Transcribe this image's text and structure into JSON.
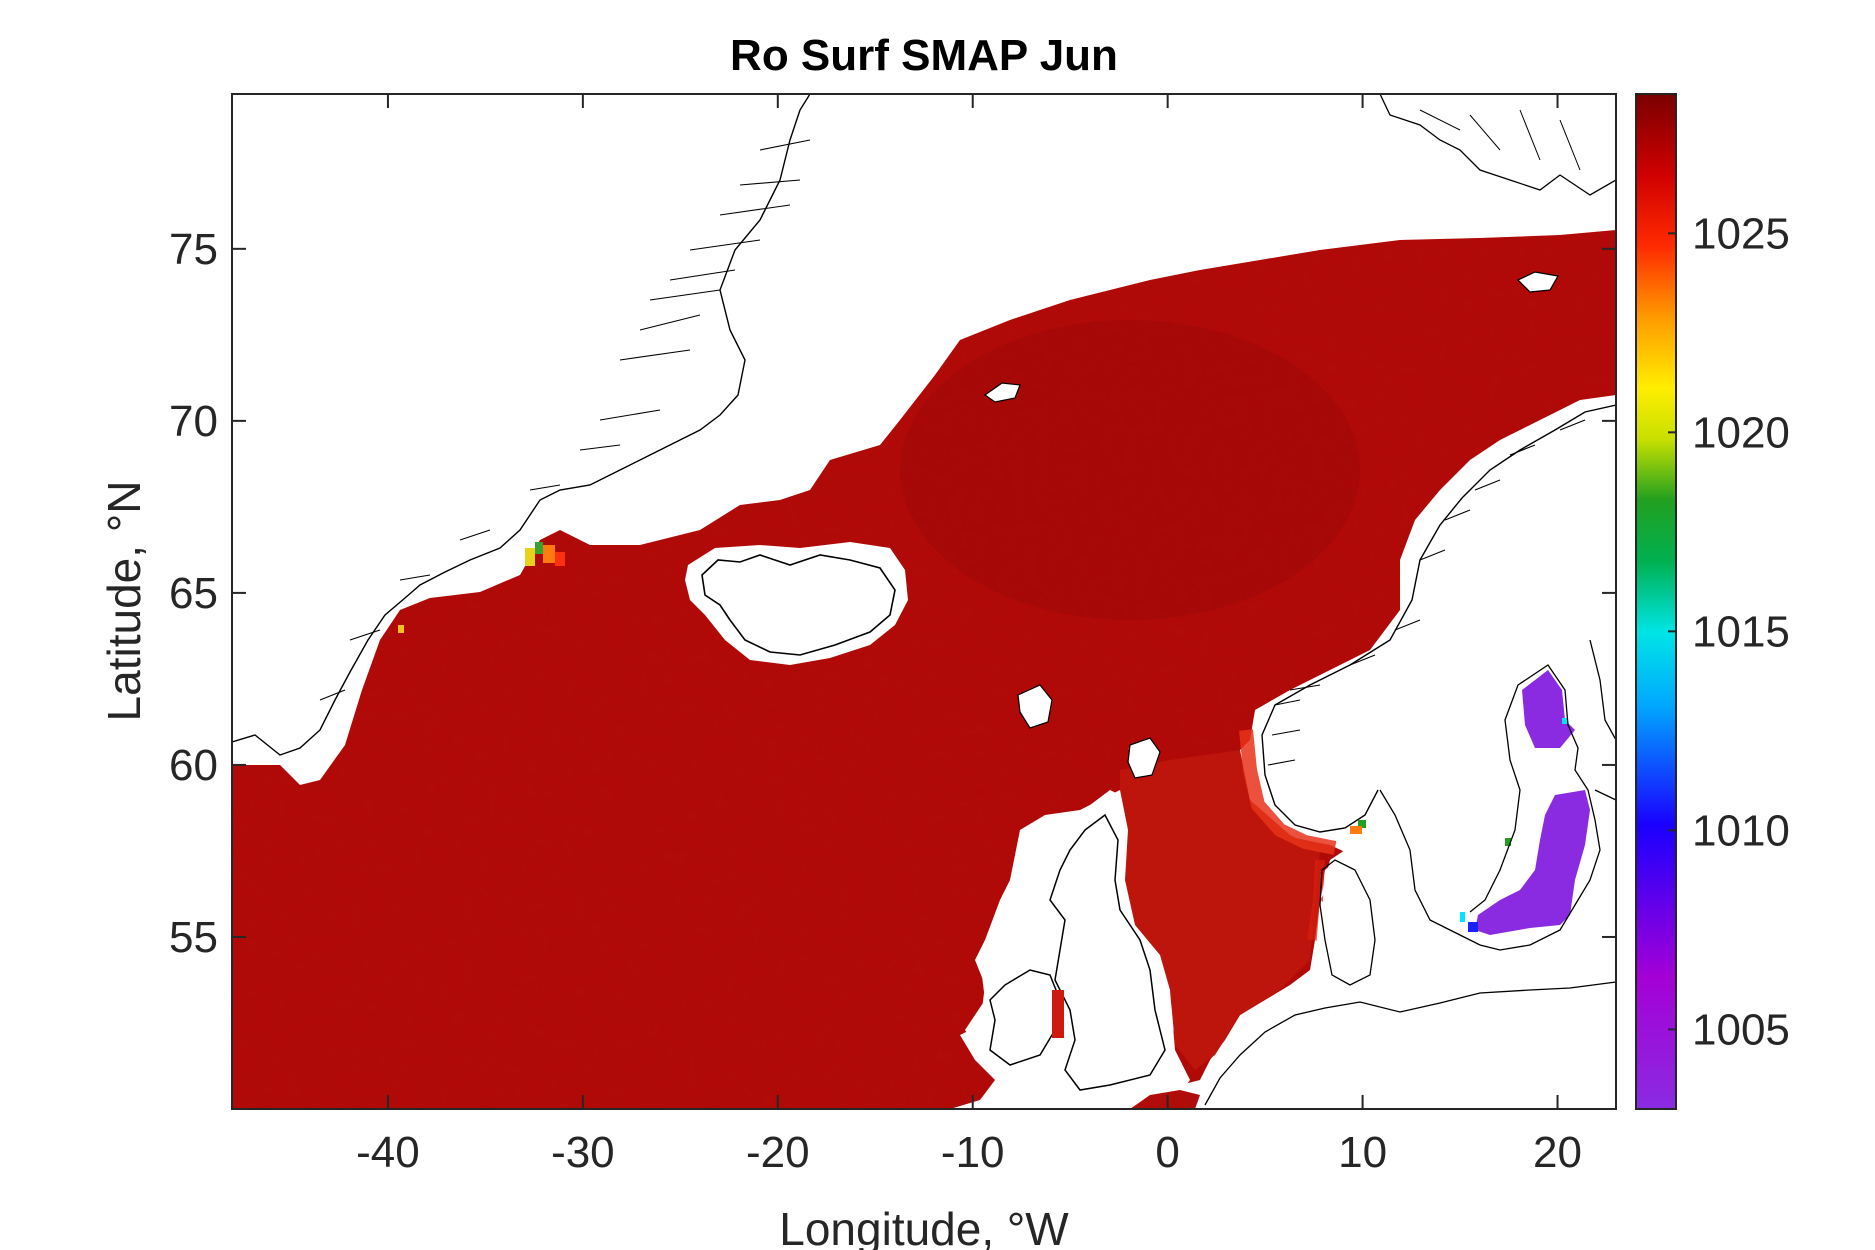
{
  "figure": {
    "title": "Ro Surf SMAP Jun",
    "xlabel": "Longitude, °W",
    "ylabel": "Latitude, °N",
    "colors": {
      "ocean": "#b00c0a",
      "ocean_dark": "#9c0808",
      "coast_warm": "#e8321a",
      "baltic": "#8a2be2",
      "land": "#ffffff",
      "coastline": "#000000"
    }
  },
  "chart_data": {
    "type": "heatmap",
    "title": "Ro Surf SMAP Jun",
    "xlabel": "Longitude, °W",
    "ylabel": "Latitude, °N",
    "xlim": [
      -48,
      23
    ],
    "ylim": [
      50,
      79.5
    ],
    "x_ticks": [
      -40,
      -30,
      -20,
      -10,
      0,
      10,
      20
    ],
    "x_tick_labels": [
      "-40",
      "-30",
      "-20",
      "-10",
      "0",
      "10",
      "20"
    ],
    "y_ticks": [
      55,
      60,
      65,
      70,
      75
    ],
    "y_tick_labels": [
      "55",
      "60",
      "65",
      "70",
      "75"
    ],
    "colorbar": {
      "range": [
        1003,
        1028.5
      ],
      "ticks": [
        1005,
        1010,
        1015,
        1020,
        1025
      ],
      "tick_labels": [
        "1005",
        "1010",
        "1015",
        "1020",
        "1025"
      ],
      "colormap": "jet-like (purple-blue-cyan-green-yellow-orange-red-darkred)"
    },
    "regions": [
      {
        "region": "North Atlantic / Nordic Seas open ocean",
        "value_approx": 1027.5
      },
      {
        "region": "Norwegian coastal current",
        "value_approx": 1025
      },
      {
        "region": "Greenland coast near 32°W 66°N",
        "value_approx": 1019
      },
      {
        "region": "Baltic Sea",
        "value_approx": 1006
      }
    ],
    "grid": false
  }
}
